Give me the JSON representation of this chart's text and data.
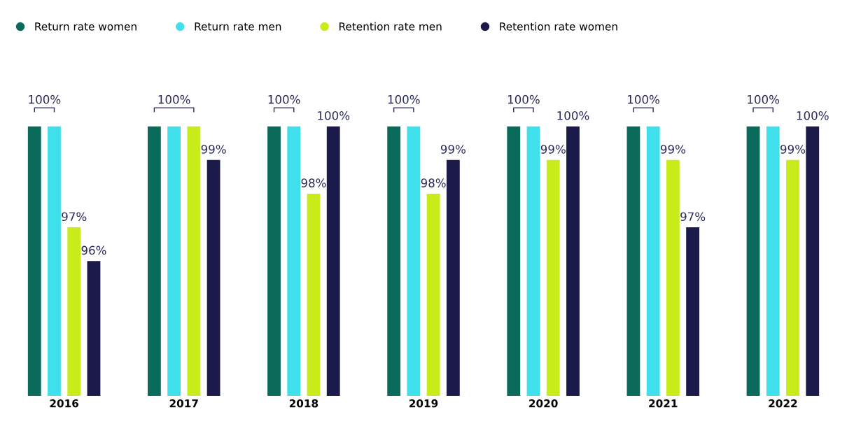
{
  "chart_data": {
    "type": "bar",
    "categories": [
      "2016",
      "2017",
      "2018",
      "2019",
      "2020",
      "2021",
      "2022"
    ],
    "ylim": [
      92,
      100
    ],
    "tick_labels": "x",
    "legend": "top left",
    "grid": false,
    "series": [
      {
        "name": "Return rate women",
        "color": "#0b6b5a",
        "values": [
          100,
          100,
          100,
          100,
          100,
          100,
          100
        ],
        "value_labels": [
          null,
          null,
          null,
          null,
          null,
          null,
          null
        ]
      },
      {
        "name": "Return rate men",
        "color": "#3fe0ec",
        "values": [
          100,
          100,
          100,
          100,
          100,
          100,
          100
        ],
        "value_labels": [
          null,
          null,
          null,
          null,
          null,
          null,
          null
        ]
      },
      {
        "name": "Retention rate men",
        "color": "#c8ec1a",
        "values": [
          97,
          100,
          98,
          98,
          99,
          99,
          99
        ],
        "value_labels": [
          "97%",
          null,
          "98%",
          "98%",
          "99%",
          "99%",
          "99%"
        ]
      },
      {
        "name": "Retention rate women",
        "color": "#1c1a4a",
        "values": [
          96,
          99,
          100,
          99,
          100,
          97,
          100
        ],
        "value_labels": [
          "96%",
          "99%",
          "100%",
          "99%",
          "100%",
          "97%",
          "100%"
        ]
      }
    ],
    "annotations": [
      {
        "text": "100%",
        "x": "2016",
        "y": 100
      },
      {
        "text": "100%",
        "x": "2017",
        "y": 100
      },
      {
        "text": "100%",
        "x": "2018",
        "y": 100
      },
      {
        "text": "100%",
        "x": "2019",
        "y": 100
      },
      {
        "text": "100%",
        "x": "2020",
        "y": 100
      },
      {
        "text": "100%",
        "x": "2021",
        "y": 100
      },
      {
        "text": "100%",
        "x": "2022",
        "y": 100
      }
    ]
  }
}
